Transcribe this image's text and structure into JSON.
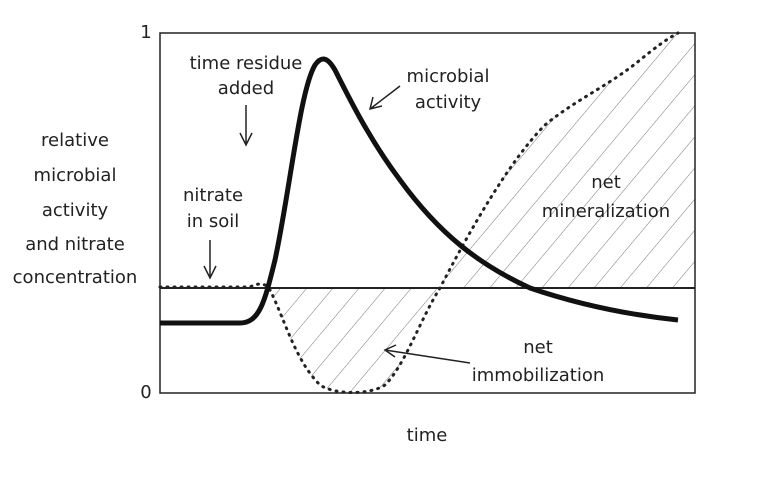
{
  "y_axis": {
    "label_lines": [
      "relative",
      "microbial",
      "activity",
      "and nitrate",
      "concentration"
    ],
    "ticks": [
      "1",
      "0"
    ]
  },
  "x_axis": {
    "label": "time"
  },
  "annotations": {
    "residue": [
      "time residue",
      "added"
    ],
    "microbial": [
      "microbial",
      "activity"
    ],
    "nitrate": [
      "nitrate",
      "in soil"
    ],
    "mineralization": [
      "net",
      "mineralization"
    ],
    "immobilization": [
      "net",
      "immobilization"
    ]
  }
}
